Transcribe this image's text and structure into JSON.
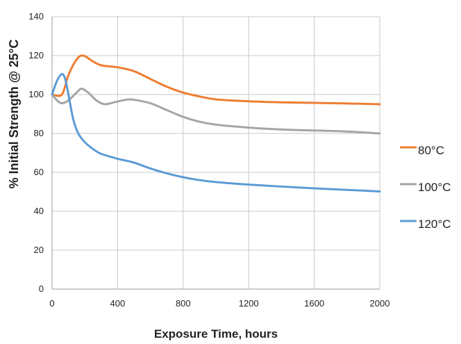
{
  "chart_data": {
    "type": "line",
    "title": "",
    "xlabel": "Exposure Time, hours",
    "ylabel": "% Initial Strength @ 25°C",
    "xlim": [
      0,
      2000
    ],
    "ylim": [
      0,
      140
    ],
    "xticks": [
      0,
      400,
      800,
      1200,
      1600,
      2000
    ],
    "yticks": [
      0,
      20,
      40,
      60,
      80,
      100,
      120,
      140
    ],
    "grid": true,
    "legend_position": "right",
    "series": [
      {
        "name": "80°C",
        "color": "#ED7D31",
        "x": [
          0,
          60,
          100,
          150,
          190,
          250,
          300,
          400,
          500,
          600,
          700,
          800,
          900,
          1000,
          1200,
          1400,
          1600,
          1800,
          2000
        ],
        "y": [
          100,
          100,
          110,
          118,
          120,
          117,
          115,
          114,
          112,
          108,
          104,
          101,
          99,
          97.5,
          96.5,
          96,
          95.7,
          95.4,
          95
        ]
      },
      {
        "name": "100°C",
        "color": "#A5A5A5",
        "x": [
          0,
          30,
          60,
          100,
          150,
          180,
          220,
          270,
          320,
          380,
          450,
          500,
          600,
          700,
          800,
          900,
          1000,
          1200,
          1400,
          1600,
          1800,
          2000
        ],
        "y": [
          100,
          97,
          95.5,
          97,
          101,
          103,
          101,
          97,
          95,
          96,
          97.3,
          97.3,
          95.5,
          92,
          88.5,
          86,
          84.5,
          83,
          82,
          81.5,
          81,
          80
        ]
      },
      {
        "name": "120°C",
        "color": "#5B9BD5",
        "x": [
          0,
          30,
          60,
          80,
          100,
          130,
          160,
          200,
          250,
          300,
          400,
          500,
          600,
          700,
          800,
          900,
          1000,
          1200,
          1400,
          1600,
          1800,
          2000
        ],
        "y": [
          100,
          107,
          110.5,
          108,
          100,
          87,
          80,
          75.5,
          72,
          69.5,
          67,
          65,
          62,
          59.5,
          57.5,
          56,
          55,
          53.7,
          52.7,
          51.8,
          51,
          50.2
        ]
      }
    ]
  }
}
